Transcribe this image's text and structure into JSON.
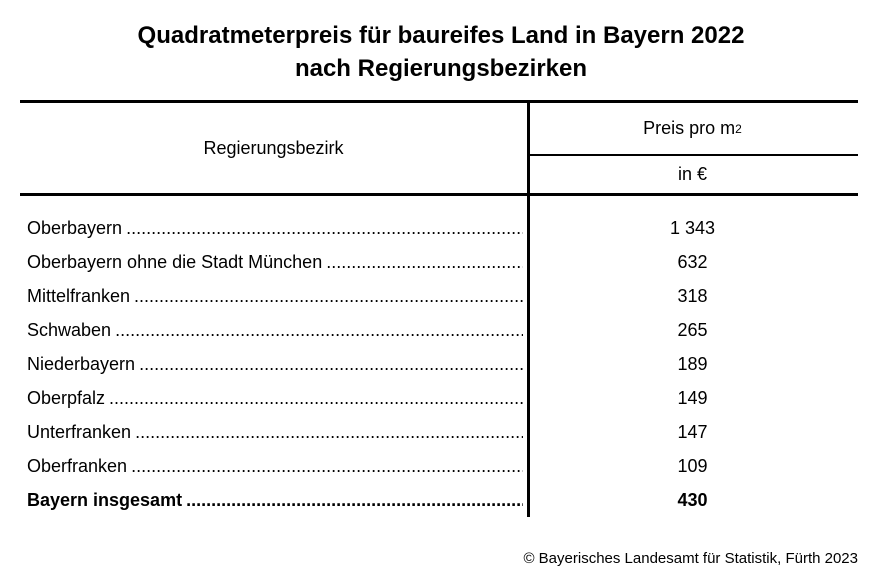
{
  "title": {
    "line1": "Quadratmeterpreis für baureifes Land in Bayern 2022",
    "line2": "nach Regierungsbezirken"
  },
  "table": {
    "col1_header": "Regierungsbezirk",
    "col2_header_base": "Preis pro m",
    "col2_header_sup": "2",
    "col2_subheader": "in €",
    "rows": [
      {
        "label": "Oberbayern",
        "value": "1 343",
        "bold": false
      },
      {
        "label": "Oberbayern ohne die Stadt München",
        "value": "632",
        "bold": false
      },
      {
        "label": "Mittelfranken",
        "value": "318",
        "bold": false
      },
      {
        "label": "Schwaben",
        "value": "265",
        "bold": false
      },
      {
        "label": "Niederbayern",
        "value": "189",
        "bold": false
      },
      {
        "label": "Oberpfalz",
        "value": "149",
        "bold": false
      },
      {
        "label": "Unterfranken",
        "value": "147",
        "bold": false
      },
      {
        "label": "Oberfranken",
        "value": "109",
        "bold": false
      },
      {
        "label": "Bayern insgesamt",
        "value": "430",
        "bold": true
      }
    ]
  },
  "footer": {
    "copyright": "© Bayerisches Landesamt für Statistik, Fürth 2023"
  },
  "chart_data": {
    "type": "table",
    "title": "Quadratmeterpreis für baureifes Land in Bayern 2022 nach Regierungsbezirken",
    "columns": [
      "Regierungsbezirk",
      "Preis pro m² in €"
    ],
    "categories": [
      "Oberbayern",
      "Oberbayern ohne die Stadt München",
      "Mittelfranken",
      "Schwaben",
      "Niederbayern",
      "Oberpfalz",
      "Unterfranken",
      "Oberfranken",
      "Bayern insgesamt"
    ],
    "values": [
      1343,
      632,
      318,
      265,
      189,
      149,
      147,
      109,
      430
    ],
    "unit": "EUR pro m²",
    "source": "© Bayerisches Landesamt für Statistik, Fürth 2023"
  }
}
